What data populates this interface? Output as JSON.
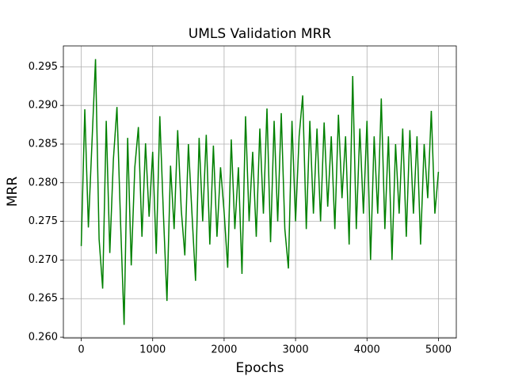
{
  "chart_data": {
    "type": "line",
    "title": "UMLS Validation MRR",
    "xlabel": "Epochs",
    "ylabel": "MRR",
    "x": [
      0,
      50,
      100,
      150,
      200,
      250,
      300,
      350,
      400,
      450,
      500,
      550,
      600,
      650,
      700,
      750,
      800,
      850,
      900,
      950,
      1000,
      1050,
      1100,
      1150,
      1200,
      1250,
      1300,
      1350,
      1400,
      1450,
      1500,
      1550,
      1600,
      1650,
      1700,
      1750,
      1800,
      1850,
      1900,
      1950,
      2000,
      2050,
      2100,
      2150,
      2200,
      2250,
      2300,
      2350,
      2400,
      2450,
      2500,
      2550,
      2600,
      2650,
      2700,
      2750,
      2800,
      2850,
      2900,
      2950,
      3000,
      3050,
      3100,
      3150,
      3200,
      3250,
      3300,
      3350,
      3400,
      3450,
      3500,
      3550,
      3600,
      3650,
      3700,
      3750,
      3800,
      3850,
      3900,
      3950,
      4000,
      4050,
      4100,
      4150,
      4200,
      4250,
      4300,
      4350,
      4400,
      4450,
      4500,
      4550,
      4600,
      4650,
      4700,
      4750,
      4800,
      4850,
      4900,
      4950,
      5000
    ],
    "series": [
      {
        "name": "MRR",
        "color": "#008000",
        "values": [
          0.2718,
          0.2895,
          0.2742,
          0.2851,
          0.296,
          0.2727,
          0.2663,
          0.288,
          0.2709,
          0.283,
          0.2898,
          0.275,
          0.2616,
          0.2858,
          0.2693,
          0.282,
          0.2872,
          0.273,
          0.2851,
          0.2756,
          0.284,
          0.2708,
          0.2886,
          0.276,
          0.2647,
          0.2822,
          0.274,
          0.2868,
          0.2765,
          0.2706,
          0.285,
          0.276,
          0.2673,
          0.2858,
          0.275,
          0.2862,
          0.272,
          0.2848,
          0.273,
          0.282,
          0.2762,
          0.269,
          0.2856,
          0.274,
          0.282,
          0.2682,
          0.2886,
          0.275,
          0.284,
          0.273,
          0.287,
          0.276,
          0.2896,
          0.2723,
          0.288,
          0.275,
          0.289,
          0.274,
          0.2689,
          0.288,
          0.275,
          0.286,
          0.2913,
          0.274,
          0.288,
          0.276,
          0.287,
          0.275,
          0.2878,
          0.2769,
          0.286,
          0.274,
          0.2888,
          0.278,
          0.286,
          0.272,
          0.2938,
          0.274,
          0.287,
          0.276,
          0.288,
          0.27,
          0.286,
          0.276,
          0.2909,
          0.274,
          0.286,
          0.27,
          0.285,
          0.276,
          0.287,
          0.273,
          0.2868,
          0.276,
          0.286,
          0.272,
          0.285,
          0.278,
          0.2893,
          0.276,
          0.2814
        ]
      }
    ],
    "xlim": [
      -250,
      5250
    ],
    "xticks": [
      0,
      1000,
      2000,
      3000,
      4000,
      5000
    ],
    "ylim": [
      0.2599,
      0.2977
    ],
    "yticks": [
      {
        "value": 0.26,
        "label": "0.260"
      },
      0.265,
      {
        "value": 0.27,
        "label": "0.270"
      },
      0.275,
      {
        "value": 0.28,
        "label": "0.280"
      },
      0.285,
      {
        "value": 0.29,
        "label": "0.290"
      },
      0.295
    ],
    "grid": true
  }
}
